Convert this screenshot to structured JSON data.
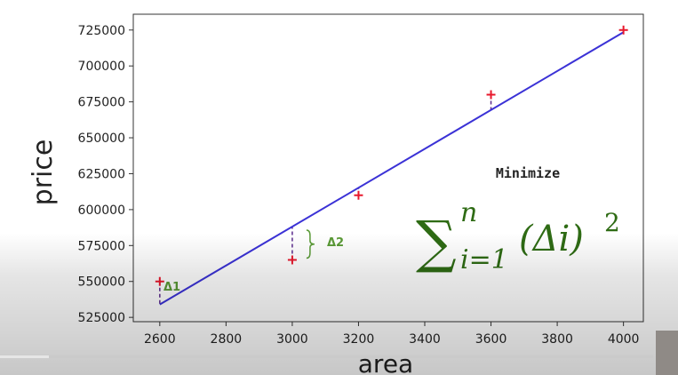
{
  "chart_data": {
    "type": "scatter",
    "title": "",
    "xlabel": "area",
    "ylabel": "price",
    "xlim": [
      2520,
      4060
    ],
    "ylim": [
      522000,
      736000
    ],
    "x_ticks": [
      2600,
      2800,
      3000,
      3200,
      3400,
      3600,
      3800,
      4000
    ],
    "y_ticks": [
      525000,
      550000,
      575000,
      600000,
      625000,
      650000,
      675000,
      700000,
      725000
    ],
    "grid": false,
    "points": [
      {
        "x": 2600,
        "y": 550000
      },
      {
        "x": 3000,
        "y": 565000
      },
      {
        "x": 3200,
        "y": 610000
      },
      {
        "x": 3600,
        "y": 680000
      },
      {
        "x": 4000,
        "y": 725000
      }
    ],
    "regression_line": {
      "x": [
        2600,
        4000
      ],
      "y": [
        534000,
        723500
      ]
    },
    "residual_labels": [
      {
        "text": "Δ1",
        "point_index": 0
      },
      {
        "text": "Δ2",
        "point_index": 1
      }
    ],
    "colors": {
      "points": "#e8182c",
      "line": "#3b32d6",
      "residual": "#5a2a8c",
      "annotation": "#5a9a36"
    }
  },
  "annotation": {
    "caption": "Minimize",
    "formula": {
      "symbol": "∑",
      "sup": "n",
      "sub": "i=1",
      "body": "(Δi)",
      "exponent": "2"
    }
  }
}
